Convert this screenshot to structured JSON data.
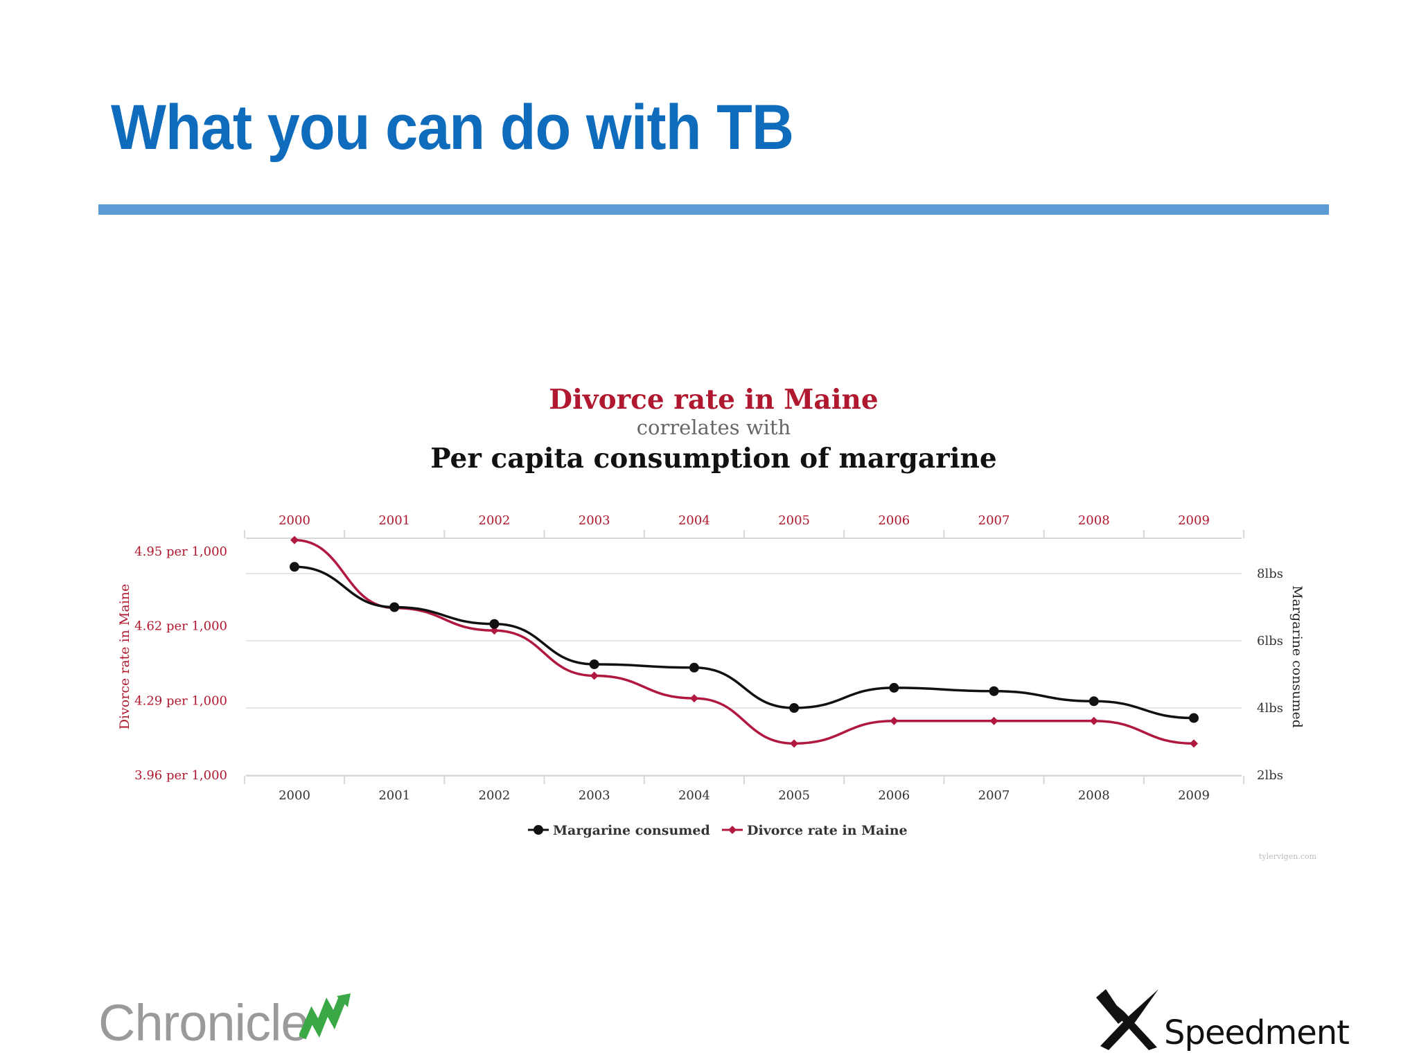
{
  "slide": {
    "title": "What you can do with TB"
  },
  "chart_data": {
    "type": "line",
    "title": "Divorce rate in Maine",
    "subtitle": "correlates with",
    "title2": "Per capita consumption of margarine",
    "x": [
      "2000",
      "2001",
      "2002",
      "2003",
      "2004",
      "2005",
      "2006",
      "2007",
      "2008",
      "2009"
    ],
    "left_axis": {
      "label": "Divorce rate in Maine",
      "ticks": [
        4.95,
        4.62,
        4.29,
        3.96
      ],
      "tick_labels": [
        "4.95 per 1,000",
        "4.62 per 1,000",
        "4.29 per 1,000",
        "3.96 per 1,000"
      ],
      "range": [
        3.96,
        4.95
      ]
    },
    "right_axis": {
      "label": "Margarine consumed",
      "ticks": [
        8,
        6,
        4,
        2
      ],
      "tick_labels": [
        "8lbs",
        "6lbs",
        "4lbs",
        "2lbs"
      ],
      "range": [
        2,
        8.6
      ]
    },
    "series": [
      {
        "name": "Margarine consumed",
        "axis": "right",
        "color": "#111111",
        "marker": "circle",
        "values": [
          8.2,
          7.0,
          6.5,
          5.3,
          5.2,
          4.0,
          4.6,
          4.5,
          4.2,
          3.7
        ]
      },
      {
        "name": "Divorce rate in Maine",
        "axis": "left",
        "color": "#b0183f",
        "marker": "diamond",
        "values": [
          5.0,
          4.7,
          4.6,
          4.4,
          4.3,
          4.1,
          4.2,
          4.2,
          4.2,
          4.1
        ]
      }
    ],
    "legend": [
      "Margarine consumed",
      "Divorce rate in Maine"
    ],
    "legend_position": "bottom-center",
    "source": "tylervigen.com",
    "grid": true
  },
  "logos": {
    "left": "Chronicle",
    "right": "Speedment",
    "accent_green": "#3aa845"
  }
}
